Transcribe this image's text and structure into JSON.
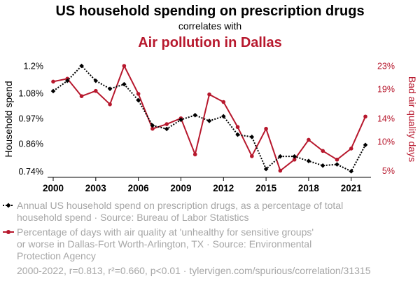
{
  "header": {
    "title": "US household spending on prescription drugs",
    "connector": "correlates with",
    "title2": "Air pollution in Dallas"
  },
  "legend": {
    "series1_line1": "Annual US household spend on prescription drugs, as a percentage of total",
    "series1_line2": "household spend · Source: Bureau of Labor Statistics",
    "series2_line1": "Percentage of days with air quality at 'unhealthy for sensitive groups'",
    "series2_line2": "or worse in Dallas-Fort Worth-Arlington, TX · Source: Environmental",
    "series2_line3": "Protection Agency"
  },
  "footer": "2000-2022, r=0.813, r²=0.660, p<0.01 · tylervigen.com/spurious/correlation/31315",
  "chart_data": {
    "type": "line",
    "x": [
      2000,
      2001,
      2002,
      2003,
      2004,
      2005,
      2006,
      2007,
      2008,
      2009,
      2010,
      2011,
      2012,
      2013,
      2014,
      2015,
      2016,
      2017,
      2018,
      2019,
      2020,
      2021,
      2022
    ],
    "x_ticks": [
      "2000",
      "2003",
      "2006",
      "2009",
      "2012",
      "2015",
      "2018",
      "2021"
    ],
    "series": [
      {
        "axis": "left",
        "color": "#000000",
        "style": "dotted",
        "marker": "diamond",
        "values": [
          1.09,
          1.135,
          1.2,
          1.135,
          1.1,
          1.12,
          1.05,
          0.94,
          0.925,
          0.965,
          0.985,
          0.96,
          0.98,
          0.9,
          0.89,
          0.75,
          0.805,
          0.805,
          0.785,
          0.765,
          0.77,
          0.74,
          0.855
        ]
      },
      {
        "axis": "right",
        "color": "#b7182d",
        "style": "solid",
        "marker": "circle",
        "values": [
          20.3,
          20.8,
          17.8,
          18.7,
          16.4,
          23.0,
          18.2,
          12.2,
          13.0,
          14.0,
          7.8,
          18.1,
          16.8,
          12.5,
          7.5,
          12.2,
          5.0,
          6.9,
          10.3,
          8.4,
          6.9,
          8.8,
          14.3
        ]
      }
    ],
    "y_left": {
      "label": "Household spend",
      "ticks": [
        "0.74%",
        "0.86%",
        "0.97%",
        "1.08%",
        "1.2%"
      ],
      "range": [
        0.735,
        1.2
      ]
    },
    "y_right": {
      "label": "Bad air quality days",
      "ticks": [
        "5%",
        "10%",
        "14%",
        "19%",
        "23%"
      ],
      "range": [
        4.7,
        23.0
      ]
    },
    "grid": false
  }
}
